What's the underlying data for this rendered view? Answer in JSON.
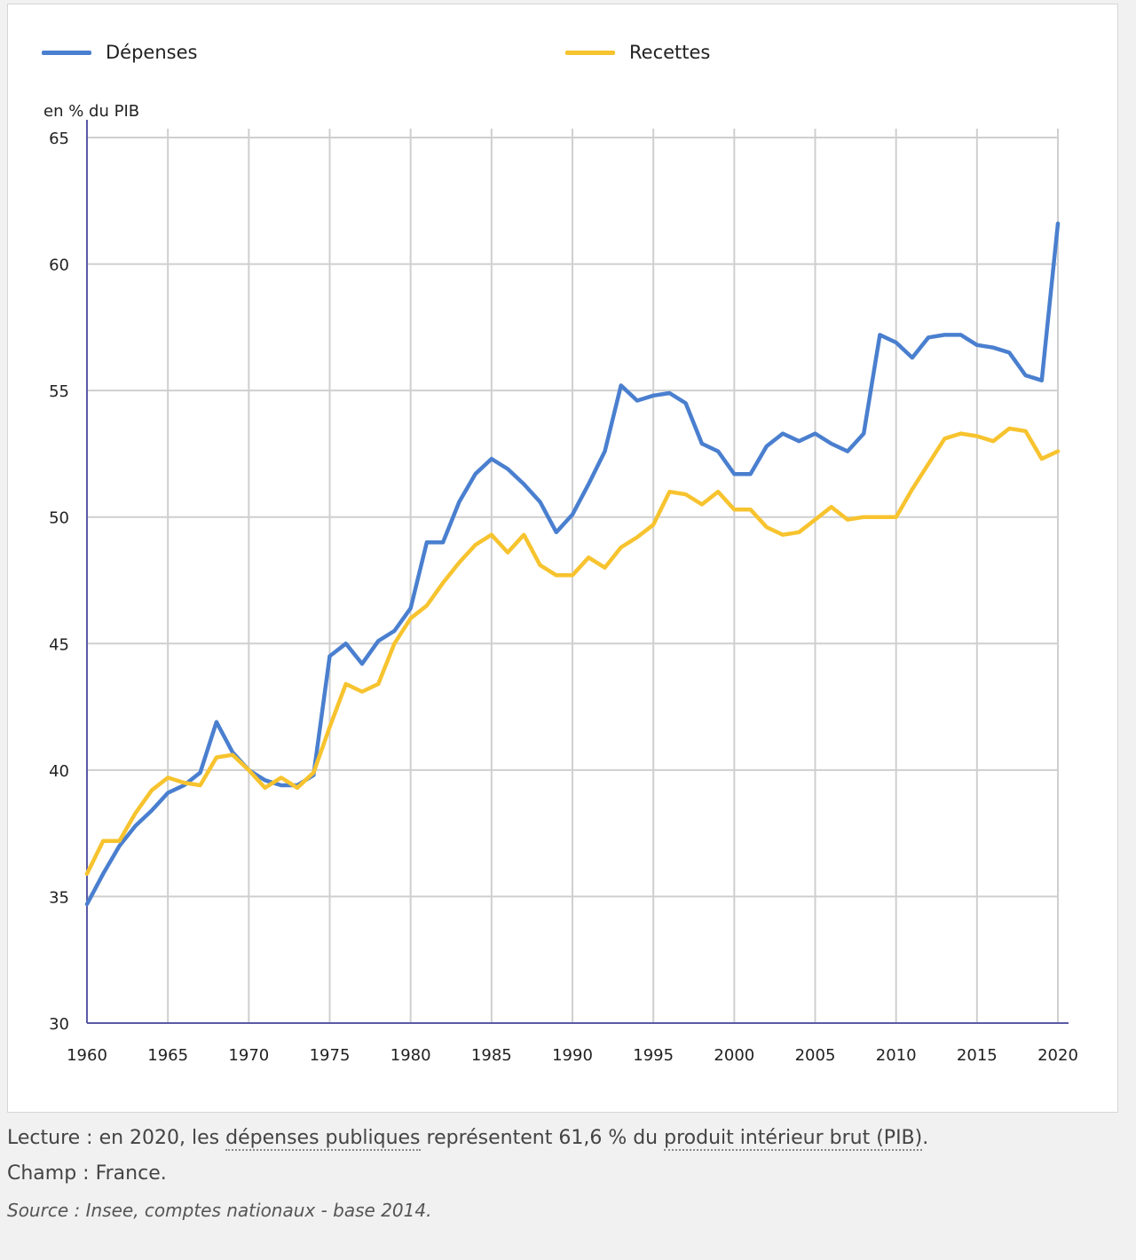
{
  "colors": {
    "depenses": "#4a7fcf",
    "recettes": "#f7c32e",
    "grid": "#cfcfcf",
    "axis": "#5a5aa6"
  },
  "legend": [
    {
      "key": "depenses",
      "label": "Dépenses"
    },
    {
      "key": "recettes",
      "label": "Recettes"
    }
  ],
  "chart_data": {
    "type": "line",
    "title": "",
    "xlabel": "",
    "ylabel": "en % du PIB",
    "xlim": [
      1960,
      2020
    ],
    "ylim": [
      30,
      65
    ],
    "x_ticks": [
      1960,
      1965,
      1970,
      1975,
      1980,
      1985,
      1990,
      1995,
      2000,
      2005,
      2010,
      2015,
      2020
    ],
    "y_ticks": [
      30,
      35,
      40,
      45,
      50,
      55,
      60,
      65
    ],
    "grid": true,
    "legend_position": "top",
    "x": [
      1960,
      1961,
      1962,
      1963,
      1964,
      1965,
      1966,
      1967,
      1968,
      1969,
      1970,
      1971,
      1972,
      1973,
      1974,
      1975,
      1976,
      1977,
      1978,
      1979,
      1980,
      1981,
      1982,
      1983,
      1984,
      1985,
      1986,
      1987,
      1988,
      1989,
      1990,
      1991,
      1992,
      1993,
      1994,
      1995,
      1996,
      1997,
      1998,
      1999,
      2000,
      2001,
      2002,
      2003,
      2004,
      2005,
      2006,
      2007,
      2008,
      2009,
      2010,
      2011,
      2012,
      2013,
      2014,
      2015,
      2016,
      2017,
      2018,
      2019,
      2020
    ],
    "series": [
      {
        "name": "Dépenses",
        "key": "depenses",
        "values": [
          34.7,
          35.9,
          37.0,
          37.8,
          38.4,
          39.1,
          39.4,
          39.9,
          41.9,
          40.7,
          40.0,
          39.6,
          39.4,
          39.4,
          39.8,
          44.5,
          45.0,
          44.2,
          45.1,
          45.5,
          46.4,
          49.0,
          49.0,
          50.6,
          51.7,
          52.3,
          51.9,
          51.3,
          50.6,
          49.4,
          50.1,
          51.3,
          52.6,
          55.2,
          54.6,
          54.8,
          54.9,
          54.5,
          52.9,
          52.6,
          51.7,
          51.7,
          52.8,
          53.3,
          53.0,
          53.3,
          52.9,
          52.6,
          53.3,
          57.2,
          56.9,
          56.3,
          57.1,
          57.2,
          57.2,
          56.8,
          56.7,
          56.5,
          55.6,
          55.4,
          61.6
        ]
      },
      {
        "name": "Recettes",
        "key": "recettes",
        "values": [
          35.9,
          37.2,
          37.2,
          38.3,
          39.2,
          39.7,
          39.5,
          39.4,
          40.5,
          40.6,
          40.0,
          39.3,
          39.7,
          39.3,
          39.9,
          41.7,
          43.4,
          43.1,
          43.4,
          45.0,
          46.0,
          46.5,
          47.4,
          48.2,
          48.9,
          49.3,
          48.6,
          49.3,
          48.1,
          47.7,
          47.7,
          48.4,
          48.0,
          48.8,
          49.2,
          49.7,
          51.0,
          50.9,
          50.5,
          51.0,
          50.3,
          50.3,
          49.6,
          49.3,
          49.4,
          49.9,
          50.4,
          49.9,
          50.0,
          50.0,
          50.0,
          51.1,
          52.1,
          53.1,
          53.3,
          53.2,
          53.0,
          53.5,
          53.4,
          52.3,
          52.6
        ]
      }
    ]
  },
  "footnotes": {
    "lecture_prefix": "Lecture : en 2020, les ",
    "lecture_link1": "dépenses publiques",
    "lecture_middle": " représentent 61,6 % du ",
    "lecture_link2": "produit intérieur brut (PIB)",
    "lecture_suffix": ".",
    "champ": "Champ : France.",
    "source": "Source : Insee, comptes nationaux - base 2014."
  }
}
